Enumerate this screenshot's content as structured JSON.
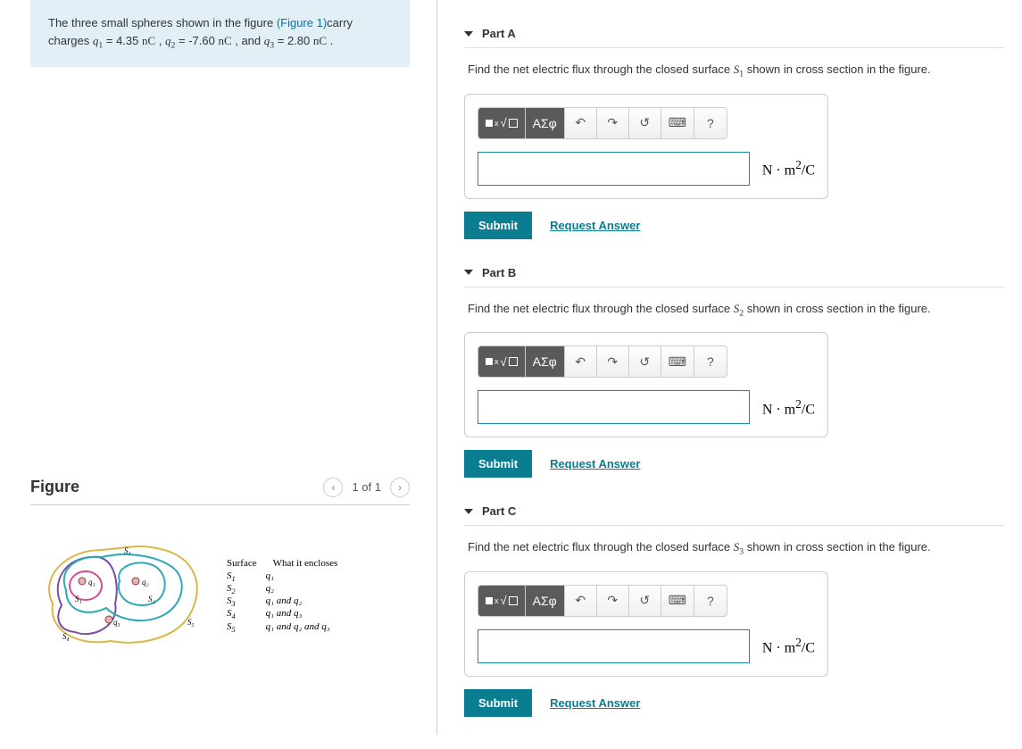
{
  "problem": {
    "intro_a": "The three small spheres shown in the figure ",
    "figure_link": "(Figure 1)",
    "intro_b": "carry charges ",
    "q1_var": "q",
    "q1_sub": "1",
    "q1_eq": " = 4.35 ",
    "q1_u1": "n",
    "q1_u2": "C",
    "sep1": " , ",
    "q2_var": "q",
    "q2_sub": "2",
    "q2_eq": " = -7.60 ",
    "q2_u1": "n",
    "q2_u2": "C",
    "sep2": " , and ",
    "q3_var": "q",
    "q3_sub": "3",
    "q3_eq": " = 2.80 ",
    "q3_u1": "n",
    "q3_u2": "C",
    "end": " ."
  },
  "figure": {
    "title": "Figure",
    "counter": "1 of 1",
    "legend": {
      "header_a": "Surface",
      "header_b": "What it encloses",
      "rows": [
        {
          "s": "S",
          "sn": "1",
          "d": "q₁"
        },
        {
          "s": "S",
          "sn": "2",
          "d": "q₂"
        },
        {
          "s": "S",
          "sn": "3",
          "d": "q₁ and q₂"
        },
        {
          "s": "S",
          "sn": "4",
          "d": "q₁ and q₃"
        },
        {
          "s": "S",
          "sn": "5",
          "d": "q₁ and q₂ and q₃"
        }
      ]
    },
    "diagram": {
      "labels": {
        "q1": "q₁",
        "q2": "q₂",
        "q3": "q₃",
        "S1": "S₁",
        "S2": "S₂",
        "S3": "S₃",
        "S4": "S₄",
        "S5": "S₅"
      },
      "colors": {
        "S1": "#d94a8c",
        "S2": "#2aa9b8",
        "S3": "#2aa9b8",
        "S4": "#7a4ea3",
        "S5": "#d9b84a",
        "sphere_fill": "#d9a0a0",
        "sphere_stroke": "#8a3a3a",
        "stroke_width": 2
      }
    }
  },
  "parts": [
    {
      "label": "Part A",
      "prompt_a": "Find the net electric flux through the closed surface ",
      "prompt_var": "S",
      "prompt_sub": "1",
      "prompt_b": " shown in cross section in the figure.",
      "units_html": "N · m² / C",
      "submit": "Submit",
      "request": "Request Answer"
    },
    {
      "label": "Part B",
      "prompt_a": "Find the net electric flux through the closed surface ",
      "prompt_var": "S",
      "prompt_sub": "2",
      "prompt_b": " shown in cross section in the figure.",
      "units_html": "N · m² / C",
      "submit": "Submit",
      "request": "Request Answer"
    },
    {
      "label": "Part C",
      "prompt_a": "Find the net electric flux through the closed surface ",
      "prompt_var": "S",
      "prompt_sub": "3",
      "prompt_b": " shown in cross section in the figure.",
      "units_html": "N · m² / C",
      "submit": "Submit",
      "request": "Request Answer"
    }
  ],
  "toolbar": {
    "templates_icon": "▭",
    "root_icon": "ᵡ√☐",
    "greek": "ΑΣφ",
    "undo": "↶",
    "redo": "↷",
    "reset": "↺",
    "keyboard": "⌨",
    "help": "?"
  }
}
